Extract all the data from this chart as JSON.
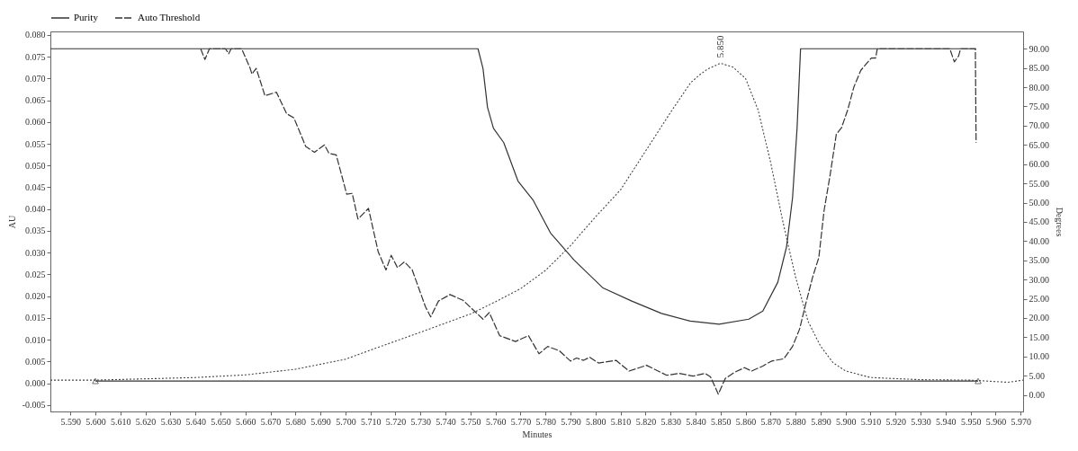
{
  "chart_data": {
    "type": "line",
    "xlabel": "Minutes",
    "ylabel": "AU",
    "y2label": "Degrees",
    "xlim": [
      5.582,
      5.971
    ],
    "ylim": [
      -0.0065,
      0.0808
    ],
    "y2lim": [
      -4.3,
      94.5
    ],
    "xticks": [
      {
        "value": 5.59,
        "label": "5.590"
      },
      {
        "value": 5.6,
        "label": "5.600"
      },
      {
        "value": 5.61,
        "label": "5.610"
      },
      {
        "value": 5.62,
        "label": "5.620"
      },
      {
        "value": 5.63,
        "label": "5.630"
      },
      {
        "value": 5.64,
        "label": "5.640"
      },
      {
        "value": 5.65,
        "label": "5.650"
      },
      {
        "value": 5.66,
        "label": "5.660"
      },
      {
        "value": 5.67,
        "label": "5.670"
      },
      {
        "value": 5.68,
        "label": "5.680"
      },
      {
        "value": 5.69,
        "label": "5.690"
      },
      {
        "value": 5.7,
        "label": "5.700"
      },
      {
        "value": 5.71,
        "label": "5.710"
      },
      {
        "value": 5.72,
        "label": "5.720"
      },
      {
        "value": 5.73,
        "label": "5.730"
      },
      {
        "value": 5.74,
        "label": "5.740"
      },
      {
        "value": 5.75,
        "label": "5.750"
      },
      {
        "value": 5.76,
        "label": "5.760"
      },
      {
        "value": 5.77,
        "label": "5.770"
      },
      {
        "value": 5.78,
        "label": "5.780"
      },
      {
        "value": 5.79,
        "label": "5.790"
      },
      {
        "value": 5.8,
        "label": "5.800"
      },
      {
        "value": 5.81,
        "label": "5.810"
      },
      {
        "value": 5.82,
        "label": "5.820"
      },
      {
        "value": 5.83,
        "label": "5.830"
      },
      {
        "value": 5.84,
        "label": "5.840"
      },
      {
        "value": 5.85,
        "label": "5.850"
      },
      {
        "value": 5.86,
        "label": "5.860"
      },
      {
        "value": 5.87,
        "label": "5.870"
      },
      {
        "value": 5.88,
        "label": "5.880"
      },
      {
        "value": 5.89,
        "label": "5.890"
      },
      {
        "value": 5.9,
        "label": "5.900"
      },
      {
        "value": 5.91,
        "label": "5.910"
      },
      {
        "value": 5.92,
        "label": "5.920"
      },
      {
        "value": 5.93,
        "label": "5.930"
      },
      {
        "value": 5.94,
        "label": "5.940"
      },
      {
        "value": 5.95,
        "label": "5.950"
      },
      {
        "value": 5.96,
        "label": "5.960"
      },
      {
        "value": 5.97,
        "label": "5.970"
      }
    ],
    "yticks": [
      {
        "value": -0.005,
        "label": "-0.005"
      },
      {
        "value": 0,
        "label": "0.000"
      },
      {
        "value": 0.005,
        "label": "0.005"
      },
      {
        "value": 0.01,
        "label": "0.010"
      },
      {
        "value": 0.015,
        "label": "0.015"
      },
      {
        "value": 0.02,
        "label": "0.020"
      },
      {
        "value": 0.025,
        "label": "0.025"
      },
      {
        "value": 0.03,
        "label": "0.030"
      },
      {
        "value": 0.035,
        "label": "0.035"
      },
      {
        "value": 0.04,
        "label": "0.040"
      },
      {
        "value": 0.045,
        "label": "0.045"
      },
      {
        "value": 0.05,
        "label": "0.050"
      },
      {
        "value": 0.055,
        "label": "0.055"
      },
      {
        "value": 0.06,
        "label": "0.060"
      },
      {
        "value": 0.065,
        "label": "0.065"
      },
      {
        "value": 0.07,
        "label": "0.070"
      },
      {
        "value": 0.075,
        "label": "0.075"
      },
      {
        "value": 0.08,
        "label": "0.080"
      }
    ],
    "y2ticks": [
      {
        "value": 0,
        "label": "0.00"
      },
      {
        "value": 5,
        "label": "5.00"
      },
      {
        "value": 10,
        "label": "10.00"
      },
      {
        "value": 15,
        "label": "15.00"
      },
      {
        "value": 20,
        "label": "20.00"
      },
      {
        "value": 25,
        "label": "25.00"
      },
      {
        "value": 30,
        "label": "30.00"
      },
      {
        "value": 35,
        "label": "35.00"
      },
      {
        "value": 40,
        "label": "40.00"
      },
      {
        "value": 45,
        "label": "45.00"
      },
      {
        "value": 50,
        "label": "50.00"
      },
      {
        "value": 55,
        "label": "55.00"
      },
      {
        "value": 60,
        "label": "60.00"
      },
      {
        "value": 65,
        "label": "65.00"
      },
      {
        "value": 70,
        "label": "70.00"
      },
      {
        "value": 75,
        "label": "75.00"
      },
      {
        "value": 80,
        "label": "80.00"
      },
      {
        "value": 85,
        "label": "85.00"
      },
      {
        "value": 90,
        "label": "90.00"
      }
    ],
    "legend": "top left",
    "grid": false,
    "annotations": [
      {
        "text": "5.850",
        "x": 5.85,
        "y": 0.0735
      }
    ],
    "series": [
      {
        "color": "#444444",
        "line_style": "dotted",
        "x": [
          5.582,
          5.6,
          5.62,
          5.64,
          5.66,
          5.68,
          5.7,
          5.71,
          5.73,
          5.75,
          5.76,
          5.77,
          5.78,
          5.79,
          5.8,
          5.81,
          5.82,
          5.83,
          5.838,
          5.842,
          5.845,
          5.85,
          5.855,
          5.86,
          5.865,
          5.87,
          5.875,
          5.88,
          5.885,
          5.89,
          5.895,
          5.9,
          5.91,
          5.93,
          5.95,
          5.965,
          5.971
        ],
        "values": [
          0.0007,
          0.0007,
          0.001,
          0.0013,
          0.0019,
          0.0032,
          0.0055,
          0.0076,
          0.0117,
          0.0159,
          0.0187,
          0.0217,
          0.0259,
          0.0316,
          0.0382,
          0.0444,
          0.0533,
          0.0622,
          0.069,
          0.071,
          0.0722,
          0.0735,
          0.0726,
          0.07,
          0.0628,
          0.0508,
          0.0369,
          0.0244,
          0.0142,
          0.0085,
          0.0047,
          0.0028,
          0.0013,
          0.0008,
          0.0007,
          0.0002,
          0.0007
        ]
      },
      {
        "color": "#333333",
        "line_style": "solid",
        "marker": "triangle",
        "x": [
          5.6,
          5.953
        ],
        "values": [
          0.0005,
          0.0005
        ]
      },
      {
        "name": "Purity",
        "color": "#333333",
        "line_style": "solid",
        "axis": "y2",
        "x": [
          5.582,
          5.753,
          5.755,
          5.7568,
          5.7592,
          5.7633,
          5.769,
          5.775,
          5.782,
          5.7914,
          5.803,
          5.8145,
          5.8264,
          5.8379,
          5.8494,
          5.8613,
          5.8669,
          5.8729,
          5.8764,
          5.8788,
          5.8806,
          5.882,
          5.9522
        ],
        "values": [
          90,
          90,
          84.9,
          74.8,
          69.3,
          65.6,
          55.6,
          50.7,
          42.1,
          35.1,
          27.8,
          24.4,
          21.2,
          19.2,
          18.4,
          19.7,
          21.8,
          29.3,
          38.5,
          51.3,
          69.3,
          90,
          90
        ]
      },
      {
        "name": "Auto Threshold",
        "color": "#333333",
        "line_style": "dashed",
        "axis": "y2",
        "x": [
          5.6421,
          5.6438,
          5.6456,
          5.652,
          5.6533,
          5.6543,
          5.6585,
          5.6619,
          5.6626,
          5.6643,
          5.6678,
          5.6724,
          5.6765,
          5.6794,
          5.6841,
          5.6876,
          5.6916,
          5.6934,
          5.6963,
          5.7005,
          5.7027,
          5.705,
          5.7092,
          5.7131,
          5.7162,
          5.7183,
          5.7208,
          5.7236,
          5.7267,
          5.732,
          5.7341,
          5.7372,
          5.7418,
          5.747,
          5.755,
          5.7575,
          5.7617,
          5.768,
          5.7732,
          5.7774,
          5.7809,
          5.7855,
          5.79,
          5.7924,
          5.7952,
          5.7977,
          5.8012,
          5.8082,
          5.8134,
          5.8204,
          5.8285,
          5.8334,
          5.839,
          5.8438,
          5.846,
          5.8491,
          5.8519,
          5.8554,
          5.8596,
          5.8624,
          5.8669,
          5.8704,
          5.8753,
          5.8788,
          5.8816,
          5.884,
          5.8869,
          5.8893,
          5.8914,
          5.8938,
          5.8963,
          5.8984,
          5.9009,
          5.9033,
          5.9061,
          5.9103,
          5.912,
          5.9127,
          5.9417,
          5.9435,
          5.9452,
          5.946,
          5.9519,
          5.9522
        ],
        "values": [
          90,
          87.2,
          90,
          90,
          88.7,
          90,
          90,
          84.9,
          83.4,
          84.9,
          77.8,
          78.7,
          73.1,
          72,
          64.6,
          63.1,
          65,
          62.8,
          62.4,
          52.2,
          52.4,
          45.7,
          48.5,
          37.2,
          32.5,
          36.3,
          33.1,
          34.6,
          32.5,
          22.9,
          20.3,
          24.4,
          26.1,
          24.6,
          19.7,
          21.4,
          15.4,
          13.9,
          15.4,
          10.7,
          12.6,
          11.5,
          8.8,
          9.6,
          9,
          9.8,
          8.3,
          9,
          6.2,
          7.7,
          5.1,
          5.6,
          4.9,
          5.6,
          4.7,
          0.2,
          4.3,
          5.8,
          7.1,
          6.2,
          7.5,
          8.8,
          9.4,
          12.6,
          17.1,
          23.5,
          30.8,
          35.7,
          47.9,
          57.1,
          67.8,
          69.5,
          74.2,
          80,
          84.4,
          87.6,
          87.6,
          90,
          90,
          86.6,
          88.1,
          90,
          90,
          65.6
        ]
      }
    ]
  }
}
